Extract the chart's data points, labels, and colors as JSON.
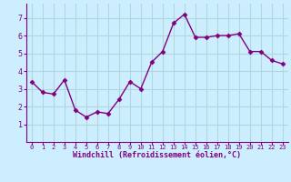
{
  "x": [
    0,
    1,
    2,
    3,
    4,
    5,
    6,
    7,
    8,
    9,
    10,
    11,
    12,
    13,
    14,
    15,
    16,
    17,
    18,
    19,
    20,
    21,
    22,
    23
  ],
  "y": [
    3.4,
    2.8,
    2.7,
    3.5,
    1.8,
    1.4,
    1.7,
    1.6,
    2.4,
    3.4,
    3.0,
    4.5,
    5.1,
    6.7,
    7.2,
    5.9,
    5.9,
    6.0,
    6.0,
    6.1,
    5.1,
    5.1,
    4.6,
    4.4
  ],
  "xlim": [
    -0.5,
    23.5
  ],
  "ylim": [
    0,
    7.8
  ],
  "yticks": [
    1,
    2,
    3,
    4,
    5,
    6,
    7
  ],
  "xticks": [
    0,
    1,
    2,
    3,
    4,
    5,
    6,
    7,
    8,
    9,
    10,
    11,
    12,
    13,
    14,
    15,
    16,
    17,
    18,
    19,
    20,
    21,
    22,
    23
  ],
  "xlabel": "Windchill (Refroidissement éolien,°C)",
  "line_color": "#800080",
  "marker": "D",
  "marker_size": 2.5,
  "line_width": 1.0,
  "bg_color": "#cceeff",
  "grid_color": "#b0d8d8",
  "tick_color": "#800080",
  "label_color": "#800080"
}
